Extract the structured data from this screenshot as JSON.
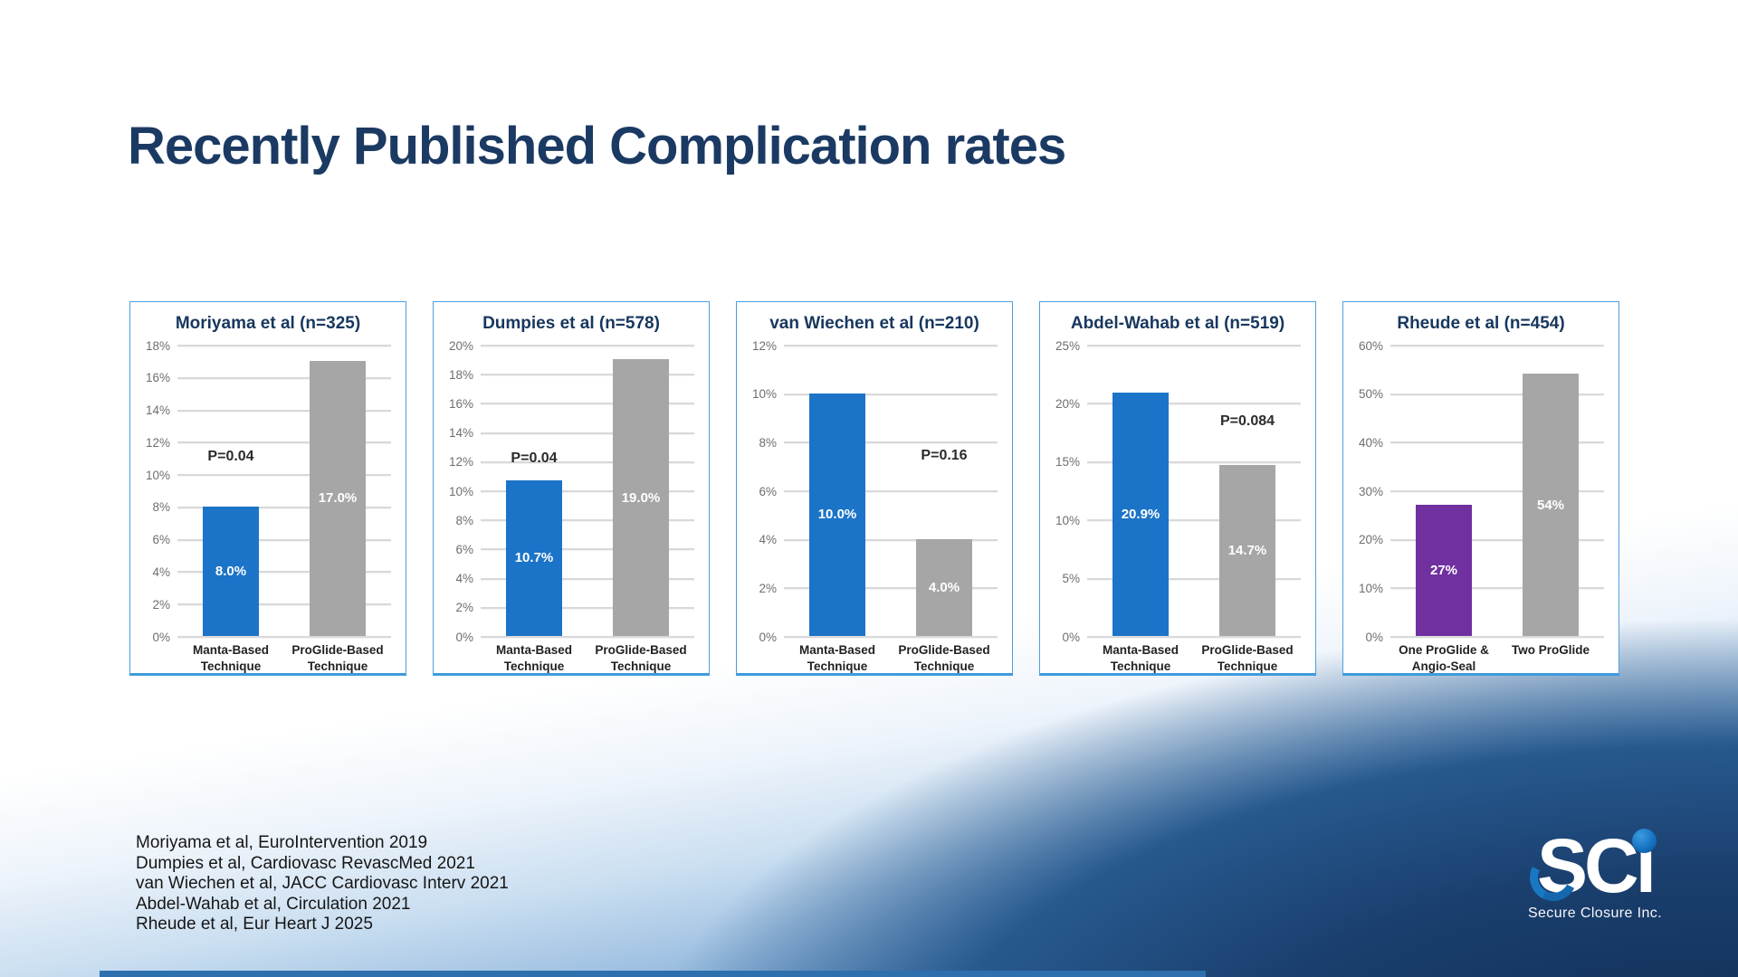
{
  "slide": {
    "title": "Recently Published Complication rates",
    "references": [
      "Moriyama et al, EuroIntervention 2019",
      "Dumpies et al, Cardiovasc RevascMed 2021",
      "van Wiechen et al, JACC Cardiovasc Interv 2021",
      "Abdel-Wahab et al, Circulation 2021",
      "Rheude et al, Eur Heart J 2025"
    ],
    "logo": {
      "letters": "SC",
      "letter_i": "ı",
      "tagline": "Secure Closure Inc."
    }
  },
  "colors": {
    "title_navy": "#1b3a63",
    "chart_border_blue": "#4fa0df",
    "bar_blue": "#1B74C8",
    "bar_gray": "#A6A6A6",
    "bar_purple": "#7030A0",
    "gridline_gray": "#d9d9d9",
    "bottom_accent_blue": "#2e6fad"
  },
  "chart_data": [
    {
      "type": "bar",
      "title": "Moriyama et al (n=325)",
      "categories": [
        "Manta-Based\nTechnique",
        "ProGlide-Based\nTechnique"
      ],
      "values": [
        8.0,
        17.0
      ],
      "value_labels": [
        "8.0%",
        "17.0%"
      ],
      "bar_colors": [
        "#1B74C8",
        "#A6A6A6"
      ],
      "ylim": [
        0,
        18
      ],
      "ytick_step": 2,
      "grid": true,
      "legend": false,
      "p_value": "P=0.04",
      "p_over_category": 0,
      "p_label_level_pct": 10.6
    },
    {
      "type": "bar",
      "title": "Dumpies et al (n=578)",
      "categories": [
        "Manta-Based\nTechnique",
        "ProGlide-Based\nTechnique"
      ],
      "values": [
        10.7,
        19.0
      ],
      "value_labels": [
        "10.7%",
        "19.0%"
      ],
      "bar_colors": [
        "#1B74C8",
        "#A6A6A6"
      ],
      "ylim": [
        0,
        20
      ],
      "ytick_step": 2,
      "grid": true,
      "legend": false,
      "p_value": "P=0.04",
      "p_over_category": 0,
      "p_label_level_pct": 11.7
    },
    {
      "type": "bar",
      "title": "van Wiechen et al (n=210)",
      "categories": [
        "Manta-Based\nTechnique",
        "ProGlide-Based\nTechnique"
      ],
      "values": [
        10.0,
        4.0
      ],
      "value_labels": [
        "10.0%",
        "4.0%"
      ],
      "bar_colors": [
        "#1B74C8",
        "#A6A6A6"
      ],
      "ylim": [
        0,
        12
      ],
      "ytick_step": 2,
      "grid": true,
      "legend": false,
      "p_value": "P=0.16",
      "p_over_category": 1,
      "p_label_level_pct": 7.1
    },
    {
      "type": "bar",
      "title": "Abdel-Wahab et al (n=519)",
      "categories": [
        "Manta-Based\nTechnique",
        "ProGlide-Based\nTechnique"
      ],
      "values": [
        20.9,
        14.7
      ],
      "value_labels": [
        "20.9%",
        "14.7%"
      ],
      "bar_colors": [
        "#1B74C8",
        "#A6A6A6"
      ],
      "ylim": [
        0,
        25
      ],
      "ytick_step": 5,
      "grid": true,
      "legend": false,
      "p_value": "P=0.084",
      "p_over_category": 1,
      "p_label_level_pct": 17.8
    },
    {
      "type": "bar",
      "title": "Rheude et al (n=454)",
      "categories": [
        "One ProGlide &\nAngio-Seal",
        "Two ProGlide"
      ],
      "values": [
        27,
        54
      ],
      "value_labels": [
        "27%",
        "54%"
      ],
      "bar_colors": [
        "#7030A0",
        "#A6A6A6"
      ],
      "ylim": [
        0,
        60
      ],
      "ytick_step": 10,
      "grid": true,
      "legend": false,
      "p_value": null,
      "p_over_category": null,
      "p_label_level_pct": null
    }
  ]
}
